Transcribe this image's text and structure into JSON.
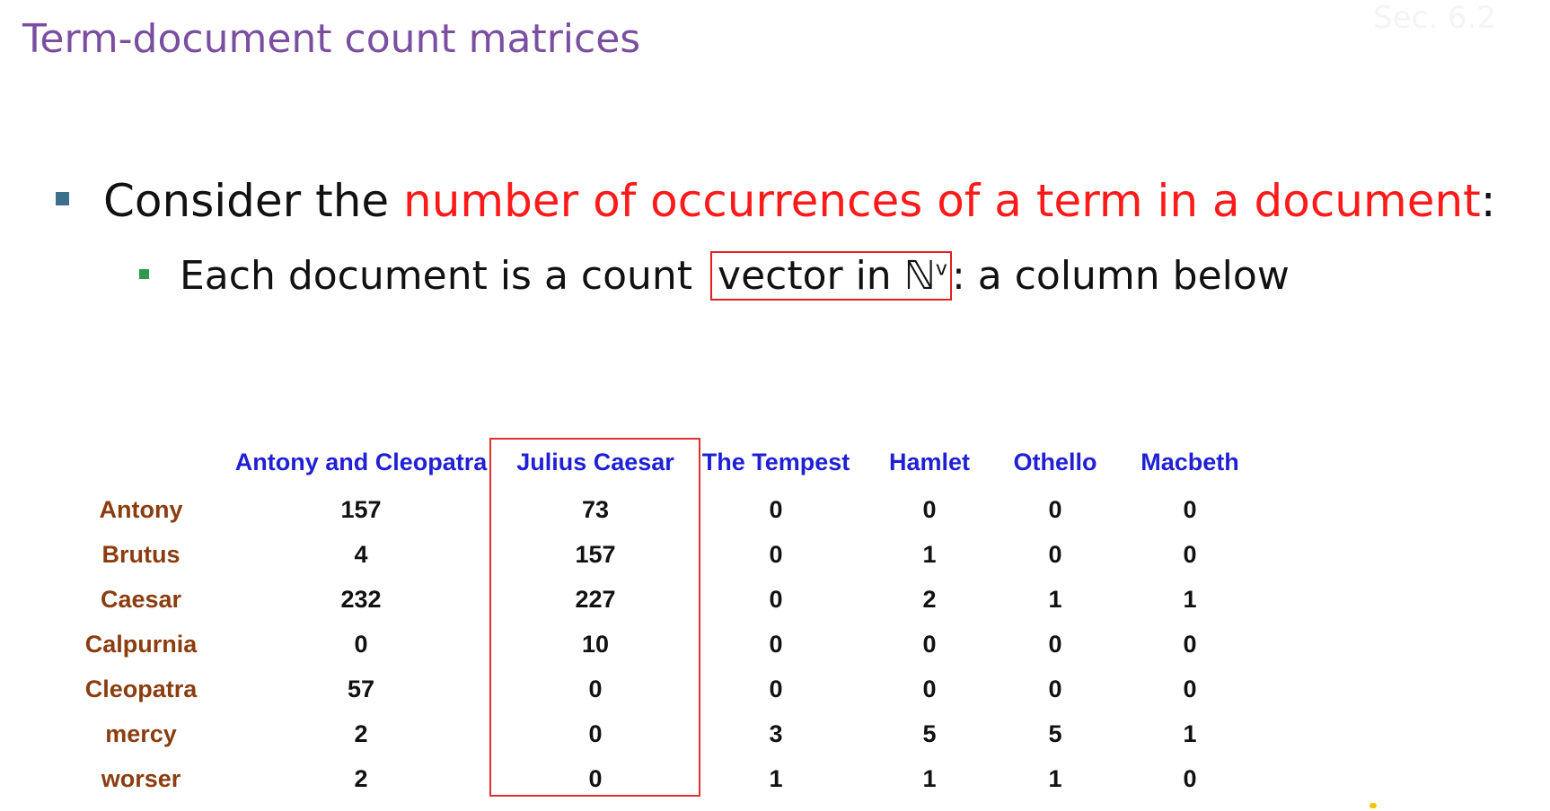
{
  "slide": {
    "title": "Term-document count matrices",
    "section_ref": "Sec. 6.2",
    "bullet1": {
      "lead": "Consider the ",
      "emphasis": "number of occurrences of a term in a document",
      "tail": ":"
    },
    "bullet2": {
      "lead": "Each document is a count ",
      "boxed": "vector in ℕ",
      "boxed_superscript": "v",
      "tail": ": a column below"
    },
    "colors": {
      "title": "#7a4fa0",
      "emphasis": "#ff1a1a",
      "column_header": "#1f1fd6",
      "row_header": "#8b3d10",
      "highlight_box": "#e03030"
    }
  },
  "matrix": {
    "columns": [
      "Antony and Cleopatra",
      "Julius Caesar",
      "The Tempest",
      "Hamlet",
      "Othello",
      "Macbeth"
    ],
    "highlighted_column": "Julius Caesar",
    "rows": [
      {
        "term": "Antony",
        "counts": [
          "157",
          "73",
          "0",
          "0",
          "0",
          "0"
        ]
      },
      {
        "term": "Brutus",
        "counts": [
          "4",
          "157",
          "0",
          "1",
          "0",
          "0"
        ]
      },
      {
        "term": "Caesar",
        "counts": [
          "232",
          "227",
          "0",
          "2",
          "1",
          "1"
        ]
      },
      {
        "term": "Calpurnia",
        "counts": [
          "0",
          "10",
          "0",
          "0",
          "0",
          "0"
        ]
      },
      {
        "term": "Cleopatra",
        "counts": [
          "57",
          "0",
          "0",
          "0",
          "0",
          "0"
        ]
      },
      {
        "term": "mercy",
        "counts": [
          "2",
          "0",
          "3",
          "5",
          "5",
          "1"
        ]
      },
      {
        "term": "worser",
        "counts": [
          "2",
          "0",
          "1",
          "1",
          "1",
          "0"
        ]
      }
    ]
  }
}
